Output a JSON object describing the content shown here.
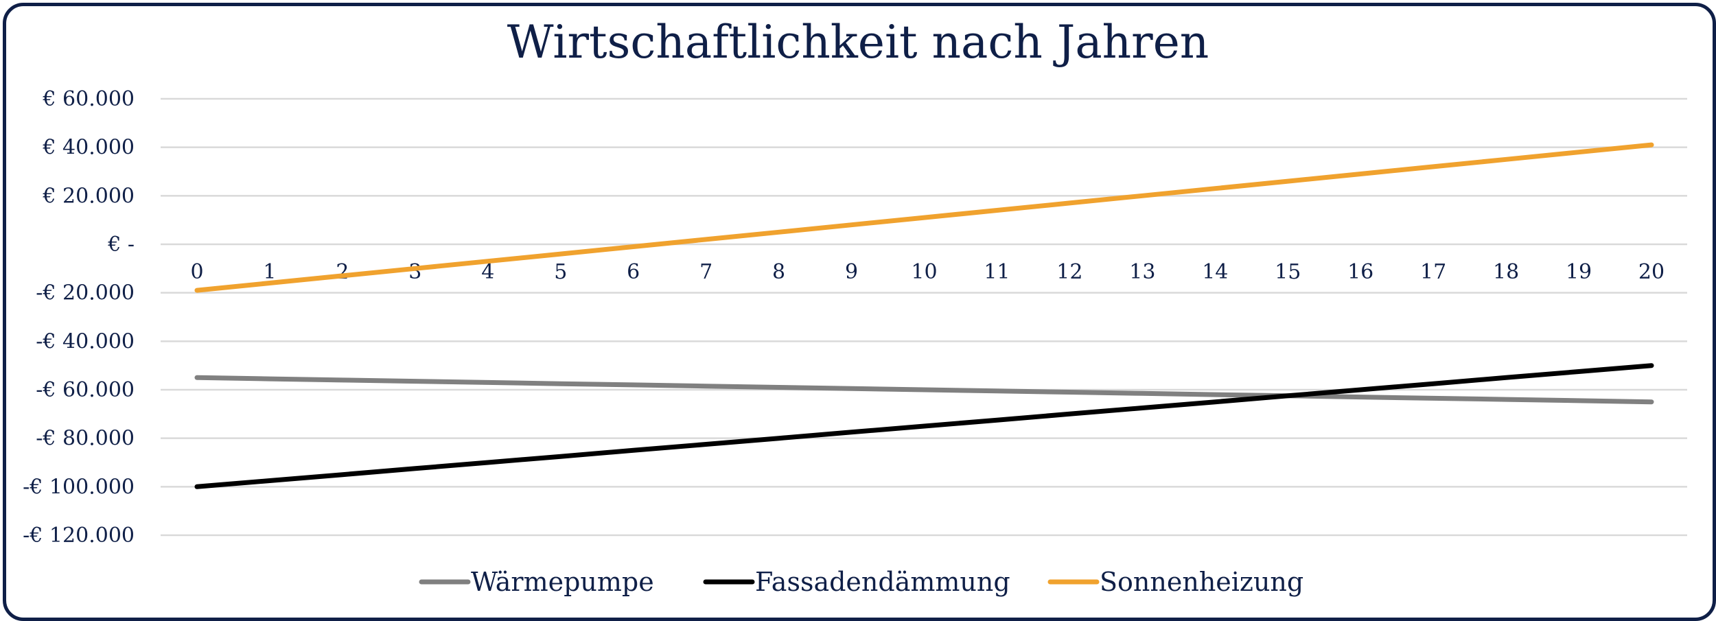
{
  "chart_data": {
    "type": "line",
    "title": "Wirtschaftlichkeit nach Jahren",
    "xlabel": "",
    "ylabel": "",
    "x": [
      0,
      1,
      2,
      3,
      4,
      5,
      6,
      7,
      8,
      9,
      10,
      11,
      12,
      13,
      14,
      15,
      16,
      17,
      18,
      19,
      20
    ],
    "y_ticks": [
      60000,
      40000,
      20000,
      0,
      -20000,
      -40000,
      -60000,
      -80000,
      -100000,
      -120000
    ],
    "y_tick_labels": [
      "€ 60.000",
      "€ 40.000",
      "€ 20.000",
      "€ -",
      "-€ 20.000",
      "-€ 40.000",
      "-€ 60.000",
      "-€ 80.000",
      "-€ 100.000",
      "-€ 120.000"
    ],
    "ylim": [
      -120000,
      60000
    ],
    "grid": true,
    "legend_position": "bottom",
    "series": [
      {
        "name": "Wärmepumpe",
        "color": "#808080",
        "values": [
          -55000,
          -55500,
          -56000,
          -56500,
          -57000,
          -57500,
          -58000,
          -58500,
          -59000,
          -59500,
          -60000,
          -60500,
          -61000,
          -61500,
          -62000,
          -62500,
          -63000,
          -63500,
          -64000,
          -64500,
          -65000
        ]
      },
      {
        "name": "Fassadendämmung",
        "color": "#000000",
        "values": [
          -100000,
          -97500,
          -95000,
          -92500,
          -90000,
          -87500,
          -85000,
          -82500,
          -80000,
          -77500,
          -75000,
          -72500,
          -70000,
          -67500,
          -65000,
          -62500,
          -60000,
          -57500,
          -55000,
          -52500,
          -50000
        ]
      },
      {
        "name": "Sonnenheizung",
        "color": "#f0a22e",
        "values": [
          -19000,
          -16000,
          -13000,
          -10000,
          -7000,
          -4000,
          -1000,
          2000,
          5000,
          8000,
          11000,
          14000,
          17000,
          20000,
          23000,
          26000,
          29000,
          32000,
          35000,
          38000,
          41000
        ]
      }
    ]
  }
}
